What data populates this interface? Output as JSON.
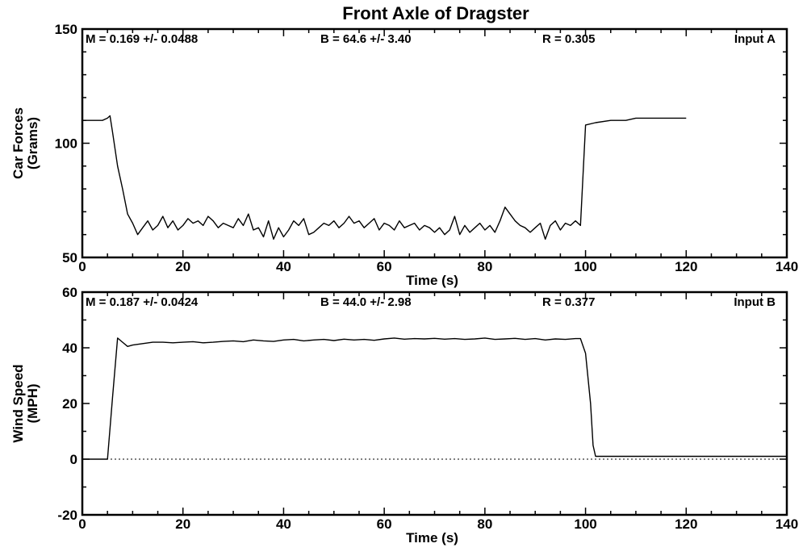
{
  "title": "Front Axle of Dragster",
  "chart_data": [
    {
      "type": "line",
      "input_label": "Input A",
      "xlabel": "Time  (s)",
      "ylabel_line1": "Car Forces",
      "ylabel_line2": "(Grams)",
      "xlim": [
        0,
        140
      ],
      "ylim": [
        50,
        150
      ],
      "x_ticks": [
        0,
        20,
        40,
        60,
        80,
        100,
        120,
        140
      ],
      "y_ticks": [
        50,
        100,
        150
      ],
      "minor_step_x": 5,
      "minor_step_y": 10,
      "stats": {
        "m": "M = 0.169 +/- 0.0488",
        "b": "B = 64.6 +/- 3.40",
        "r": "R = 0.305"
      },
      "series": [
        {
          "x": [
            0,
            4,
            5,
            5.5,
            6,
            7,
            8,
            9,
            10,
            11,
            12,
            13,
            14,
            15,
            16,
            17,
            18,
            19,
            20,
            21,
            22,
            23,
            24,
            25,
            26,
            27,
            28,
            29,
            30,
            31,
            32,
            33,
            34,
            35,
            36,
            37,
            38,
            39,
            40,
            41,
            42,
            43,
            44,
            45,
            46,
            47,
            48,
            49,
            50,
            51,
            52,
            53,
            54,
            55,
            56,
            57,
            58,
            59,
            60,
            61,
            62,
            63,
            64,
            65,
            66,
            67,
            68,
            69,
            70,
            71,
            72,
            73,
            74,
            75,
            76,
            77,
            78,
            79,
            80,
            81,
            82,
            83,
            84,
            85,
            86,
            87,
            88,
            89,
            90,
            91,
            92,
            93,
            94,
            95,
            96,
            97,
            98,
            99,
            100,
            102,
            105,
            108,
            110,
            115,
            120
          ],
          "y": [
            110,
            110,
            111,
            112,
            105,
            90,
            80,
            69,
            65,
            60,
            63,
            66,
            62,
            64,
            68,
            63,
            66,
            62,
            64,
            67,
            65,
            66,
            64,
            68,
            66,
            63,
            65,
            64,
            63,
            67,
            64,
            69,
            62,
            63,
            59,
            66,
            58,
            63,
            59,
            62,
            66,
            64,
            67,
            60,
            61,
            63,
            65,
            64,
            66,
            63,
            65,
            68,
            65,
            66,
            63,
            65,
            67,
            62,
            65,
            64,
            62,
            66,
            63,
            64,
            65,
            62,
            64,
            63,
            61,
            63,
            60,
            62,
            68,
            60,
            64,
            61,
            63,
            65,
            62,
            64,
            61,
            66,
            72,
            69,
            66,
            64,
            63,
            61,
            63,
            65,
            58,
            64,
            66,
            62,
            65,
            64,
            66,
            64,
            108,
            109,
            110,
            110,
            111,
            111,
            111
          ]
        }
      ]
    },
    {
      "type": "line",
      "input_label": "Input B",
      "xlabel": "Time  (s)",
      "ylabel_line1": "Wind Speed",
      "ylabel_line2": "(MPH)",
      "xlim": [
        0,
        140
      ],
      "ylim": [
        -20,
        60
      ],
      "x_ticks": [
        0,
        20,
        40,
        60,
        80,
        100,
        120,
        140
      ],
      "y_ticks": [
        -20,
        0,
        20,
        40,
        60
      ],
      "minor_step_x": 5,
      "minor_step_y": 10,
      "zero_line": true,
      "stats": {
        "m": "M = 0.187 +/- 0.0424",
        "b": "B = 44.0 +/- 2.98",
        "r": "R = 0.377"
      },
      "series": [
        {
          "x": [
            0,
            5,
            6,
            7,
            8,
            9,
            10,
            12,
            14,
            16,
            18,
            20,
            22,
            24,
            26,
            28,
            30,
            32,
            34,
            36,
            38,
            40,
            42,
            44,
            46,
            48,
            50,
            52,
            54,
            56,
            58,
            60,
            62,
            64,
            66,
            68,
            70,
            72,
            74,
            76,
            78,
            80,
            82,
            84,
            86,
            88,
            90,
            92,
            94,
            96,
            98,
            99,
            100,
            101,
            101.5,
            102,
            105,
            110,
            120,
            130,
            140
          ],
          "y": [
            0,
            0,
            22,
            43.5,
            42,
            40.5,
            41,
            41.5,
            42,
            42,
            41.8,
            42,
            42.2,
            41.8,
            42,
            42.3,
            42.5,
            42.2,
            42.8,
            42.5,
            42.3,
            42.8,
            43,
            42.5,
            42.8,
            43,
            42.6,
            43.1,
            42.8,
            43,
            42.7,
            43.2,
            43.5,
            43.1,
            43.3,
            43.2,
            43.4,
            43.1,
            43.3,
            43,
            43.2,
            43.5,
            43,
            43.2,
            43.4,
            43,
            43.3,
            42.8,
            43.2,
            43,
            43.3,
            43.3,
            38,
            20,
            5,
            1,
            1,
            1,
            1,
            1,
            1
          ]
        }
      ]
    }
  ]
}
